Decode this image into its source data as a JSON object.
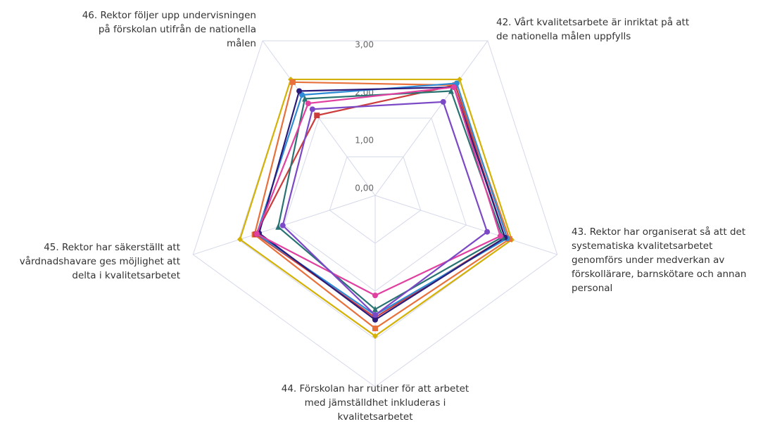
{
  "chart_data": {
    "type": "radar",
    "categories": [
      "42. Vårt kvalitetsarbete är inriktat på att de nationella målen uppfylls",
      "43. Rektor har organiserat så att det systematiska kvalitetsarbetet genomförs under medverkan av förskollärare, barnskötare och annan personal",
      "44. Förskolan har rutiner för att arbetet med jämställdhet inkluderas i kvalitetsarbetet",
      "45. Rektor har säkerställt att vårdnadshavare ges möjlighet att delta i kvalitetsarbetet",
      "46. Rektor följer upp undervisningen på förskolan utifrån de nationella målen"
    ],
    "ylim": [
      0,
      4
    ],
    "yticks": [
      {
        "value": 0,
        "label": "0,00"
      },
      {
        "value": 1,
        "label": "1,00"
      },
      {
        "value": 2,
        "label": "2,00"
      },
      {
        "value": 3,
        "label": "3,00"
      }
    ],
    "series": [
      {
        "color": "#d4b106",
        "marker": "diamond",
        "values": [
          3.0,
          3.0,
          2.94,
          2.97,
          3.0
        ]
      },
      {
        "color": "#e8703a",
        "marker": "square",
        "values": [
          2.85,
          2.95,
          2.78,
          2.65,
          2.93
        ]
      },
      {
        "color": "#cc3c3c",
        "marker": "square",
        "values": [
          2.85,
          2.85,
          2.55,
          2.62,
          2.07
        ]
      },
      {
        "color": "#2e8bd6",
        "marker": "circle",
        "values": [
          2.9,
          2.9,
          2.5,
          2.6,
          2.6
        ]
      },
      {
        "color": "#2b1c7a",
        "marker": "circle",
        "values": [
          2.8,
          2.85,
          2.6,
          2.55,
          2.7
        ]
      },
      {
        "color": "#2a7373",
        "marker": "triangle",
        "values": [
          2.7,
          2.8,
          2.38,
          2.13,
          2.5
        ]
      },
      {
        "color": "#e040a0",
        "marker": "circle",
        "values": [
          2.8,
          2.75,
          2.09,
          2.6,
          2.38
        ]
      },
      {
        "color": "#7b49c6",
        "marker": "circle",
        "values": [
          2.42,
          2.46,
          2.5,
          2.03,
          2.23
        ]
      }
    ]
  }
}
